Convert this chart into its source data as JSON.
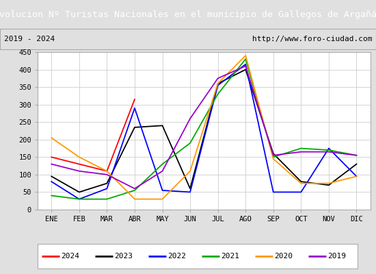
{
  "title": "Evolucion Nº Turistas Nacionales en el municipio de Gallegos de Argañán",
  "subtitle_left": "2019 - 2024",
  "subtitle_right": "http://www.foro-ciudad.com",
  "title_bg_color": "#4472c4",
  "title_text_color": "#ffffff",
  "months": [
    "ENE",
    "FEB",
    "MAR",
    "ABR",
    "MAY",
    "JUN",
    "JUL",
    "AGO",
    "SEP",
    "OCT",
    "NOV",
    "DIC"
  ],
  "ylim": [
    0,
    450
  ],
  "yticks": [
    0,
    50,
    100,
    150,
    200,
    250,
    300,
    350,
    400,
    450
  ],
  "series": {
    "2024": {
      "color": "#ff0000",
      "values": [
        150,
        130,
        110,
        315,
        null,
        null,
        null,
        null,
        null,
        null,
        null,
        null
      ]
    },
    "2023": {
      "color": "#000000",
      "values": [
        95,
        50,
        75,
        235,
        240,
        60,
        360,
        400,
        160,
        80,
        70,
        130
      ]
    },
    "2022": {
      "color": "#0000ff",
      "values": [
        80,
        30,
        60,
        290,
        55,
        50,
        355,
        415,
        50,
        50,
        175,
        95
      ]
    },
    "2021": {
      "color": "#00aa00",
      "values": [
        40,
        30,
        30,
        55,
        130,
        190,
        330,
        430,
        150,
        175,
        170,
        155
      ]
    },
    "2020": {
      "color": "#ff9900",
      "values": [
        205,
        150,
        110,
        30,
        30,
        110,
        360,
        440,
        145,
        75,
        75,
        95
      ]
    },
    "2019": {
      "color": "#9900cc",
      "values": [
        130,
        110,
        100,
        60,
        110,
        260,
        375,
        410,
        155,
        165,
        165,
        155
      ]
    }
  },
  "legend_order": [
    "2024",
    "2023",
    "2022",
    "2021",
    "2020",
    "2019"
  ],
  "grid_color": "#cccccc",
  "plot_bg_color": "#ffffff",
  "outer_bg_color": "#e0e0e0",
  "border_color": "#aaaaaa",
  "title_fontsize": 9.5,
  "tick_fontsize": 7.5,
  "legend_fontsize": 8
}
